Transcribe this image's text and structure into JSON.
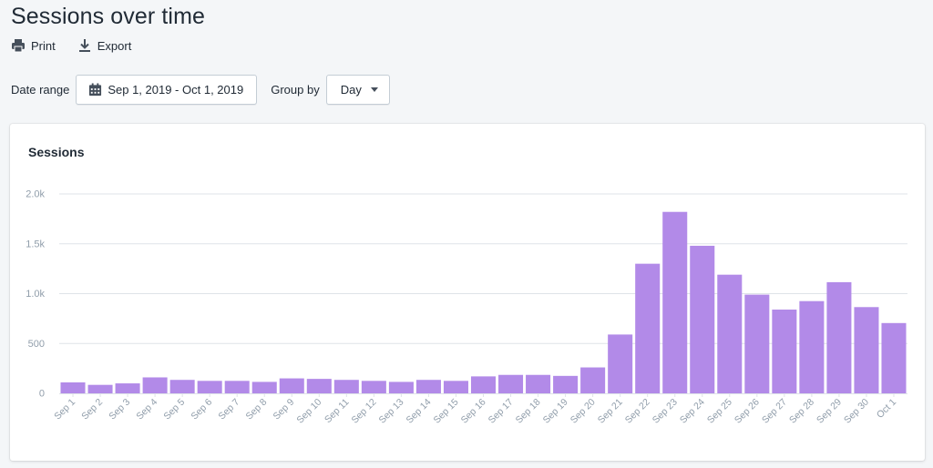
{
  "header": {
    "title": "Sessions over time"
  },
  "actions": {
    "print_label": "Print",
    "export_label": "Export"
  },
  "filters": {
    "date_range_label": "Date range",
    "date_range_value": "Sep 1, 2019 - Oct 1, 2019",
    "group_by_label": "Group by",
    "group_by_value": "Day"
  },
  "colors": {
    "bar": "#b28ae8",
    "gridline": "#dfe3e8",
    "tick_text": "#919eab"
  },
  "chart_data": {
    "type": "bar",
    "title": "Sessions",
    "xlabel": "",
    "ylabel": "",
    "ylim": [
      0,
      2000
    ],
    "y_ticks": [
      {
        "value": 0,
        "label": "0"
      },
      {
        "value": 500,
        "label": "500"
      },
      {
        "value": 1000,
        "label": "1.0k"
      },
      {
        "value": 1500,
        "label": "1.5k"
      },
      {
        "value": 2000,
        "label": "2.0k"
      }
    ],
    "grid": true,
    "categories": [
      "Sep 1",
      "Sep 2",
      "Sep 3",
      "Sep 4",
      "Sep 5",
      "Sep 6",
      "Sep 7",
      "Sep 8",
      "Sep 9",
      "Sep 10",
      "Sep 11",
      "Sep 12",
      "Sep 13",
      "Sep 14",
      "Sep 15",
      "Sep 16",
      "Sep 17",
      "Sep 18",
      "Sep 19",
      "Sep 20",
      "Sep 21",
      "Sep 22",
      "Sep 23",
      "Sep 24",
      "Sep 25",
      "Sep 26",
      "Sep 27",
      "Sep 28",
      "Sep 29",
      "Sep 30",
      "Oct 1"
    ],
    "values": [
      110,
      85,
      100,
      160,
      135,
      125,
      125,
      115,
      150,
      145,
      135,
      125,
      115,
      135,
      125,
      170,
      185,
      185,
      175,
      260,
      590,
      1300,
      1820,
      1480,
      1190,
      990,
      840,
      925,
      1115,
      865,
      705
    ]
  }
}
